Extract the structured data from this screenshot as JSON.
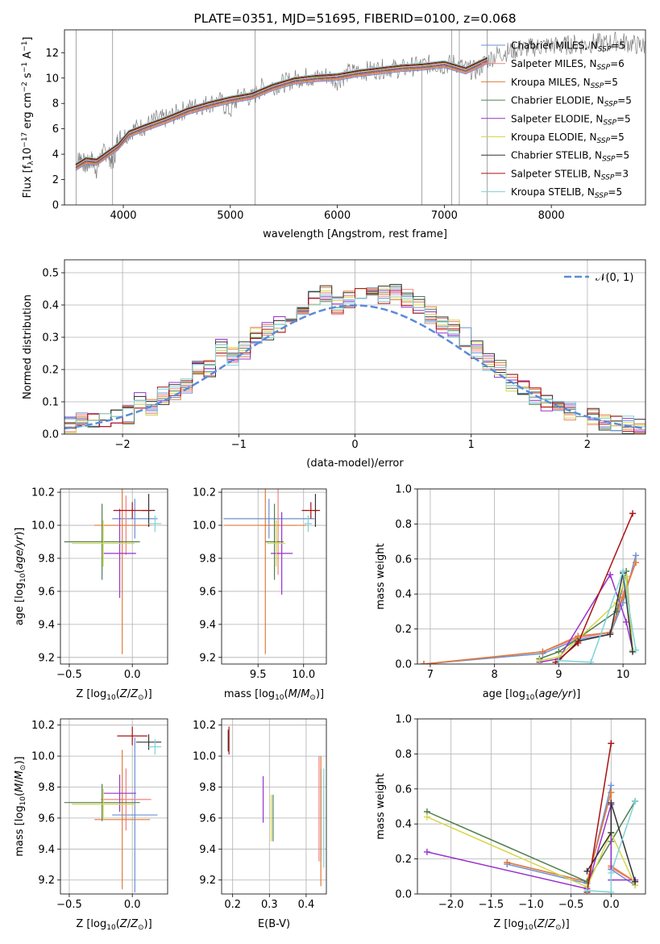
{
  "chart_data": [
    {
      "id": "spectrum",
      "type": "line",
      "title": "PLATE=0351, MJD=51695, FIBERID=0100, z=0.068",
      "xlabel": "wavelength [Angstrom, rest frame]",
      "ylabel": "Flux [f_λ10^-17 erg cm^-2 s^-1 A^-1]",
      "xlim": [
        3450,
        8880
      ],
      "ylim": [
        0,
        13.8
      ],
      "xticks": [
        4000,
        5000,
        6000,
        7000,
        8000
      ],
      "yticks": [
        0,
        2,
        4,
        6,
        8,
        10,
        12
      ],
      "grid": false,
      "legend_position": "upper right",
      "data_color": "#808080",
      "data_series": {
        "x": [
          3555,
          3600,
          3650,
          3700,
          3750,
          3800,
          3850,
          3900,
          3950,
          4000,
          4100,
          4200,
          4300,
          4400,
          4500,
          4600,
          4700,
          4800,
          4900,
          5000,
          5100,
          5200,
          5300,
          5400,
          5500,
          5600,
          5700,
          5800,
          5900,
          6000,
          6100,
          6200,
          6300,
          6400,
          6500,
          6600,
          6700,
          6800,
          6900,
          7000,
          7100,
          7200,
          7300,
          7400,
          7500,
          7600,
          7700,
          7800,
          7900,
          8000,
          8100,
          8200,
          8300,
          8400,
          8500,
          8600,
          8700,
          8800,
          8880
        ],
        "y": [
          3.2,
          3.8,
          3.0,
          3.6,
          2.8,
          4.0,
          4.2,
          3.2,
          5.2,
          5.4,
          6.0,
          6.2,
          6.7,
          6.8,
          7.2,
          7.6,
          7.8,
          8.0,
          8.2,
          7.4,
          8.8,
          8.4,
          9.3,
          9.4,
          9.6,
          9.9,
          10.1,
          10.0,
          10.2,
          9.8,
          10.4,
          10.5,
          10.6,
          10.7,
          10.8,
          10.7,
          10.9,
          11.0,
          11.1,
          11.0,
          11.2,
          10.7,
          10.6,
          11.4,
          11.9,
          12.1,
          12.3,
          12.4,
          12.5,
          12.6,
          12.5,
          12.7,
          12.6,
          12.8,
          12.7,
          12.9,
          12.8,
          12.6,
          12.5
        ]
      },
      "model_x": [
        3555,
        3650,
        3750,
        3850,
        3950,
        4050,
        4200,
        4400,
        4600,
        4800,
        5000,
        5200,
        5400,
        5600,
        5800,
        6000,
        6200,
        6400,
        6600,
        6800,
        7000,
        7200,
        7400
      ],
      "model_y": [
        3.0,
        3.5,
        3.4,
        4.0,
        4.6,
        5.6,
        6.1,
        6.7,
        7.4,
        7.9,
        8.3,
        8.6,
        9.3,
        9.8,
        10.0,
        10.1,
        10.4,
        10.6,
        10.8,
        10.9,
        11.1,
        10.6,
        11.4
      ],
      "series": [
        {
          "name": "Chabrier MILES, N_SSP=5",
          "color": "#6b8fd4"
        },
        {
          "name": "Salpeter MILES, N_SSP=6",
          "color": "#f08080"
        },
        {
          "name": "Kroupa MILES, N_SSP=5",
          "color": "#e07b39"
        },
        {
          "name": "Chabrier ELODIE, N_SSP=5",
          "color": "#4f7f4f"
        },
        {
          "name": "Salpeter ELODIE, N_SSP=5",
          "color": "#9932cc"
        },
        {
          "name": "Kroupa ELODIE, N_SSP=5",
          "color": "#d6d64a"
        },
        {
          "name": "Chabrier STELIB, N_SSP=5",
          "color": "#333333"
        },
        {
          "name": "Salpeter STELIB, N_SSP=3",
          "color": "#aa1111"
        },
        {
          "name": "Kroupa STELIB, N_SSP=5",
          "color": "#7fd3d8"
        }
      ]
    },
    {
      "id": "residuals",
      "type": "histogram",
      "xlabel": "(data-model)/error",
      "ylabel": "Normed distribution",
      "xlim": [
        -2.5,
        2.5
      ],
      "ylim": [
        0,
        0.54
      ],
      "xticks": [
        -2,
        -1,
        0,
        1,
        2
      ],
      "yticks": [
        0.0,
        0.1,
        0.2,
        0.3,
        0.4,
        0.5
      ],
      "grid": true,
      "legend_position": "upper right",
      "legend": "N(0,1)",
      "reference_color": "#5b8bd8",
      "bins": [
        -2.5,
        -2.4,
        -2.3,
        -2.2,
        -2.1,
        -2.0,
        -1.9,
        -1.8,
        -1.7,
        -1.6,
        -1.5,
        -1.4,
        -1.3,
        -1.2,
        -1.1,
        -1.0,
        -0.9,
        -0.8,
        -0.7,
        -0.6,
        -0.5,
        -0.4,
        -0.3,
        -0.2,
        -0.1,
        0.0,
        0.1,
        0.2,
        0.3,
        0.4,
        0.5,
        0.6,
        0.7,
        0.8,
        0.9,
        1.0,
        1.1,
        1.2,
        1.3,
        1.4,
        1.5,
        1.6,
        1.7,
        1.8,
        1.9,
        2.0,
        2.1,
        2.2,
        2.3,
        2.4,
        2.5
      ],
      "hist_heights": [
        0.03,
        0.04,
        0.05,
        0.05,
        0.05,
        0.06,
        0.1,
        0.08,
        0.12,
        0.13,
        0.15,
        0.2,
        0.2,
        0.27,
        0.24,
        0.26,
        0.31,
        0.32,
        0.34,
        0.36,
        0.4,
        0.42,
        0.44,
        0.4,
        0.42,
        0.44,
        0.45,
        0.43,
        0.44,
        0.42,
        0.4,
        0.37,
        0.34,
        0.33,
        0.3,
        0.26,
        0.22,
        0.2,
        0.16,
        0.14,
        0.12,
        0.1,
        0.08,
        0.07,
        0.06,
        0.05,
        0.04,
        0.03,
        0.03,
        0.02
      ]
    },
    {
      "id": "age_vs_z",
      "type": "errorbar",
      "xlabel": "Z [log10(Z/Z☉)]",
      "ylabel": "age [log10(age/yr)]",
      "xlim": [
        -0.57,
        0.28
      ],
      "ylim": [
        9.16,
        10.22
      ],
      "xticks": [
        -0.5,
        0.0
      ],
      "yticks": [
        9.2,
        9.4,
        9.6,
        9.8,
        10.0,
        10.2
      ],
      "grid": true,
      "points": [
        {
          "series": 0,
          "x": 0.02,
          "xerr": 0.18,
          "y": 10.04,
          "yerr": 0.12
        },
        {
          "series": 1,
          "x": -0.05,
          "xerr": 0.2,
          "y": 10.0,
          "yerr": 0.18
        },
        {
          "series": 2,
          "x": -0.08,
          "xerr": 0.22,
          "y": 10.0,
          "yerr": 0.78
        },
        {
          "series": 3,
          "x": -0.24,
          "xerr": 0.3,
          "y": 9.9,
          "yerr": 0.23
        },
        {
          "series": 4,
          "x": -0.1,
          "xerr": 0.13,
          "y": 9.83,
          "yerr": 0.27
        },
        {
          "series": 5,
          "x": -0.23,
          "xerr": 0.25,
          "y": 9.89,
          "yerr": 0.14
        },
        {
          "series": 6,
          "x": 0.13,
          "xerr": 0.05,
          "y": 10.09,
          "yerr": 0.1
        },
        {
          "series": 7,
          "x": 0.0,
          "xerr": 0.15,
          "y": 10.09,
          "yerr": 0.05
        },
        {
          "series": 8,
          "x": 0.18,
          "xerr": 0.05,
          "y": 10.01,
          "yerr": 0.05
        }
      ]
    },
    {
      "id": "age_vs_mass",
      "type": "errorbar",
      "xlabel": "mass [log10(M/M☉)]",
      "ylabel": "",
      "xlim": [
        9.1,
        10.25
      ],
      "ylim": [
        9.16,
        10.22
      ],
      "xticks": [
        9.5,
        10.0
      ],
      "yticks": [
        9.2,
        9.4,
        9.6,
        9.8,
        10.0,
        10.2
      ],
      "grid": true,
      "points": [
        {
          "series": 0,
          "x": 9.62,
          "xerr": 0.5,
          "y": 10.04,
          "yerr": 0.12
        },
        {
          "series": 1,
          "x": 9.72,
          "xerr": 0.2,
          "y": 10.0,
          "yerr": 0.3
        },
        {
          "series": 2,
          "x": 9.58,
          "xerr": 0.45,
          "y": 10.0,
          "yerr": 0.78
        },
        {
          "series": 3,
          "x": 9.68,
          "xerr": 0.1,
          "y": 9.9,
          "yerr": 0.23
        },
        {
          "series": 4,
          "x": 9.76,
          "xerr": 0.12,
          "y": 9.83,
          "yerr": 0.25
        },
        {
          "series": 5,
          "x": 9.7,
          "xerr": 0.1,
          "y": 9.89,
          "yerr": 0.14
        },
        {
          "series": 6,
          "x": 10.13,
          "xerr": 0.02,
          "y": 10.09,
          "yerr": 0.1
        },
        {
          "series": 7,
          "x": 10.08,
          "xerr": 0.1,
          "y": 10.09,
          "yerr": 0.05
        },
        {
          "series": 8,
          "x": 10.05,
          "xerr": 0.04,
          "y": 10.01,
          "yerr": 0.05
        }
      ]
    },
    {
      "id": "weight_vs_age",
      "type": "line",
      "xlabel": "age [log10(age/yr)]",
      "ylabel": "mass weight",
      "xlim": [
        6.8,
        10.35
      ],
      "ylim": [
        0.0,
        1.0
      ],
      "xticks": [
        7,
        8,
        9,
        10
      ],
      "yticks": [
        0.0,
        0.2,
        0.4,
        0.6,
        0.8,
        1.0
      ],
      "grid": true,
      "series": [
        {
          "series": 0,
          "x": [
            6.9,
            8.75,
            9.3,
            9.8,
            10.0,
            10.2
          ],
          "y": [
            0.0,
            0.06,
            0.14,
            0.17,
            0.35,
            0.62
          ]
        },
        {
          "series": 1,
          "x": [
            6.9,
            8.75,
            9.3,
            9.8,
            10.0,
            10.2
          ],
          "y": [
            0.0,
            0.07,
            0.15,
            0.18,
            0.4,
            0.58
          ]
        },
        {
          "series": 2,
          "x": [
            6.9,
            8.75,
            9.3,
            9.8,
            10.0,
            10.2
          ],
          "y": [
            0.0,
            0.07,
            0.16,
            0.18,
            0.38,
            0.58
          ]
        },
        {
          "series": 3,
          "x": [
            8.7,
            9.0,
            9.9,
            10.05,
            10.15
          ],
          "y": [
            0.03,
            0.07,
            0.3,
            0.53,
            0.08
          ]
        },
        {
          "series": 4,
          "x": [
            8.7,
            9.0,
            9.8,
            10.05,
            10.15
          ],
          "y": [
            0.01,
            0.03,
            0.51,
            0.24,
            0.08
          ]
        },
        {
          "series": 5,
          "x": [
            8.7,
            9.0,
            9.9,
            10.05,
            10.15
          ],
          "y": [
            0.02,
            0.04,
            0.35,
            0.5,
            0.08
          ]
        },
        {
          "series": 6,
          "x": [
            9.0,
            9.3,
            9.8,
            10.0,
            10.15
          ],
          "y": [
            0.02,
            0.13,
            0.17,
            0.52,
            0.07
          ]
        },
        {
          "series": 7,
          "x": [
            8.95,
            9.3,
            10.15
          ],
          "y": [
            0.01,
            0.12,
            0.86
          ]
        },
        {
          "series": 8,
          "x": [
            9.0,
            9.5,
            10.0,
            10.2
          ],
          "y": [
            0.02,
            0.01,
            0.53,
            0.08
          ]
        }
      ]
    },
    {
      "id": "mass_vs_z",
      "type": "errorbar",
      "xlabel": "Z [log10(Z/Z☉)]",
      "ylabel": "mass [log10(M/M☉)]",
      "xlim": [
        -0.57,
        0.28
      ],
      "ylim": [
        9.11,
        10.24
      ],
      "xticks": [
        -0.5,
        0.0
      ],
      "yticks": [
        9.2,
        9.4,
        9.6,
        9.8,
        10.0,
        10.2
      ],
      "grid": true,
      "points": [
        {
          "series": 0,
          "x": 0.02,
          "xerr": 0.18,
          "y": 9.62,
          "yerr": 0.5
        },
        {
          "series": 1,
          "x": -0.05,
          "xerr": 0.2,
          "y": 9.72,
          "yerr": 0.2
        },
        {
          "series": 2,
          "x": -0.08,
          "xerr": 0.22,
          "y": 9.59,
          "yerr": 0.45
        },
        {
          "series": 3,
          "x": -0.24,
          "xerr": 0.3,
          "y": 9.7,
          "yerr": 0.12
        },
        {
          "series": 4,
          "x": -0.1,
          "xerr": 0.13,
          "y": 9.76,
          "yerr": 0.12
        },
        {
          "series": 5,
          "x": -0.23,
          "xerr": 0.25,
          "y": 9.69,
          "yerr": 0.1
        },
        {
          "series": 6,
          "x": 0.13,
          "xerr": 0.1,
          "y": 10.09,
          "yerr": 0.05
        },
        {
          "series": 7,
          "x": 0.0,
          "xerr": 0.12,
          "y": 10.13,
          "yerr": 0.06
        },
        {
          "series": 8,
          "x": 0.18,
          "xerr": 0.05,
          "y": 10.06,
          "yerr": 0.05
        }
      ]
    },
    {
      "id": "mass_vs_ebv",
      "type": "errorbar",
      "xlabel": "E(B-V)",
      "ylabel": "",
      "xlim": [
        0.17,
        0.455
      ],
      "ylim": [
        9.11,
        10.24
      ],
      "xticks": [
        0.2,
        0.3,
        0.4
      ],
      "yticks": [
        9.2,
        9.4,
        9.6,
        9.8,
        10.0,
        10.2
      ],
      "grid": true,
      "points": [
        {
          "series": 0,
          "x": 0.44,
          "y": 9.62,
          "yerr": 0.3
        },
        {
          "series": 1,
          "x": 0.435,
          "y": 9.66,
          "yerr": 0.34
        },
        {
          "series": 2,
          "x": 0.44,
          "y": 9.58,
          "yerr": 0.42
        },
        {
          "series": 3,
          "x": 0.31,
          "y": 9.6,
          "yerr": 0.15
        },
        {
          "series": 4,
          "x": 0.283,
          "y": 9.72,
          "yerr": 0.15
        },
        {
          "series": 5,
          "x": 0.305,
          "y": 9.6,
          "yerr": 0.15
        },
        {
          "series": 6,
          "x": 0.188,
          "y": 10.1,
          "yerr": 0.07
        },
        {
          "series": 7,
          "x": 0.19,
          "y": 10.1,
          "yerr": 0.09
        },
        {
          "series": 8,
          "x": 0.448,
          "y": 9.6,
          "yerr": 0.32
        }
      ]
    },
    {
      "id": "weight_vs_z",
      "type": "line",
      "xlabel": "Z [log10(Z/Z☉)]",
      "ylabel": "mass weight",
      "xlim": [
        -2.42,
        0.43
      ],
      "ylim": [
        0.0,
        1.0
      ],
      "xticks": [
        -2.0,
        -1.5,
        -1.0,
        -0.5,
        0.0
      ],
      "yticks": [
        0.0,
        0.2,
        0.4,
        0.6,
        0.8,
        1.0
      ],
      "grid": true,
      "series": [
        {
          "series": 0,
          "x": [
            -1.3,
            -0.3,
            0.0,
            0.0,
            0.3
          ],
          "y": [
            0.17,
            0.06,
            0.62,
            0.14,
            0.05
          ]
        },
        {
          "series": 1,
          "x": [
            -1.3,
            -0.3,
            0.0,
            0.0,
            0.3
          ],
          "y": [
            0.18,
            0.07,
            0.58,
            0.15,
            0.07
          ]
        },
        {
          "series": 2,
          "x": [
            -1.3,
            -0.3,
            0.0,
            0.0,
            0.3
          ],
          "y": [
            0.18,
            0.07,
            0.58,
            0.16,
            0.07
          ]
        },
        {
          "series": 3,
          "x": [
            -2.3,
            -0.3,
            0.0,
            0.3
          ],
          "y": [
            0.47,
            0.07,
            0.3,
            0.53
          ]
        },
        {
          "series": 4,
          "x": [
            -2.3,
            -0.3,
            0.0,
            0.0,
            0.3
          ],
          "y": [
            0.24,
            0.03,
            0.51,
            0.08,
            0.08
          ]
        },
        {
          "series": 5,
          "x": [
            -2.3,
            -0.3,
            0.0,
            0.3
          ],
          "y": [
            0.44,
            0.04,
            0.35,
            0.05
          ]
        },
        {
          "series": 6,
          "x": [
            -0.3,
            0.0,
            0.0,
            0.3
          ],
          "y": [
            0.13,
            0.35,
            0.52,
            0.07
          ]
        },
        {
          "series": 7,
          "x": [
            -0.3,
            0.0
          ],
          "y": [
            0.01,
            0.86
          ]
        },
        {
          "series": 8,
          "x": [
            -0.3,
            0.0,
            0.0,
            0.3
          ],
          "y": [
            0.02,
            0.01,
            0.12,
            0.53
          ]
        }
      ]
    }
  ]
}
